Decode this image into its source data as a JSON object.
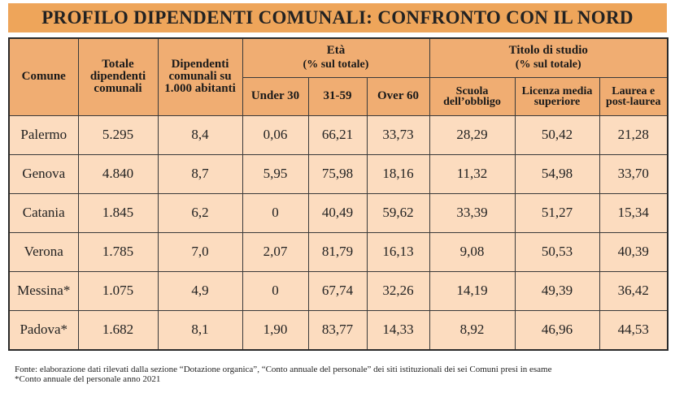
{
  "title": "PROFILO DIPENDENTI COMUNALI: CONFRONTO CON IL NORD",
  "table": {
    "group_headers": {
      "eta": "Età",
      "eta_sub": "(% sul totale)",
      "studio": "Titolo di studio",
      "studio_sub": "(% sul totale)"
    },
    "headers": [
      "Comune",
      "Totale dipendenti comunali",
      "Dipendenti comunali su 1.000 abitanti",
      "Under 30",
      "31-59",
      "Over 60",
      "Scuola dell’obbligo",
      "Licenza media superiore",
      "Laurea e post-laurea"
    ],
    "rows": [
      [
        "Palermo",
        "5.295",
        "8,4",
        "0,06",
        "66,21",
        "33,73",
        "28,29",
        "50,42",
        "21,28"
      ],
      [
        "Genova",
        "4.840",
        "8,7",
        "5,95",
        "75,98",
        "18,16",
        "11,32",
        "54,98",
        "33,70"
      ],
      [
        "Catania",
        "1.845",
        "6,2",
        "0",
        "40,49",
        "59,62",
        "33,39",
        "51,27",
        "15,34"
      ],
      [
        "Verona",
        "1.785",
        "7,0",
        "2,07",
        "81,79",
        "16,13",
        "9,08",
        "50,53",
        "40,39"
      ],
      [
        "Messina*",
        "1.075",
        "4,9",
        "0",
        "67,74",
        "32,26",
        "14,19",
        "49,39",
        "36,42"
      ],
      [
        "Padova*",
        "1.682",
        "8,1",
        "1,90",
        "83,77",
        "14,33",
        "8,92",
        "46,96",
        "44,53"
      ]
    ]
  },
  "notes": [
    "Fonte: elaborazione dati rilevati dalla sezione “Dotazione organica”, “Conto annuale del personale” dei siti istituzionali dei sei Comuni presi in esame",
    "*Conto annuale del personale anno 2021"
  ]
}
